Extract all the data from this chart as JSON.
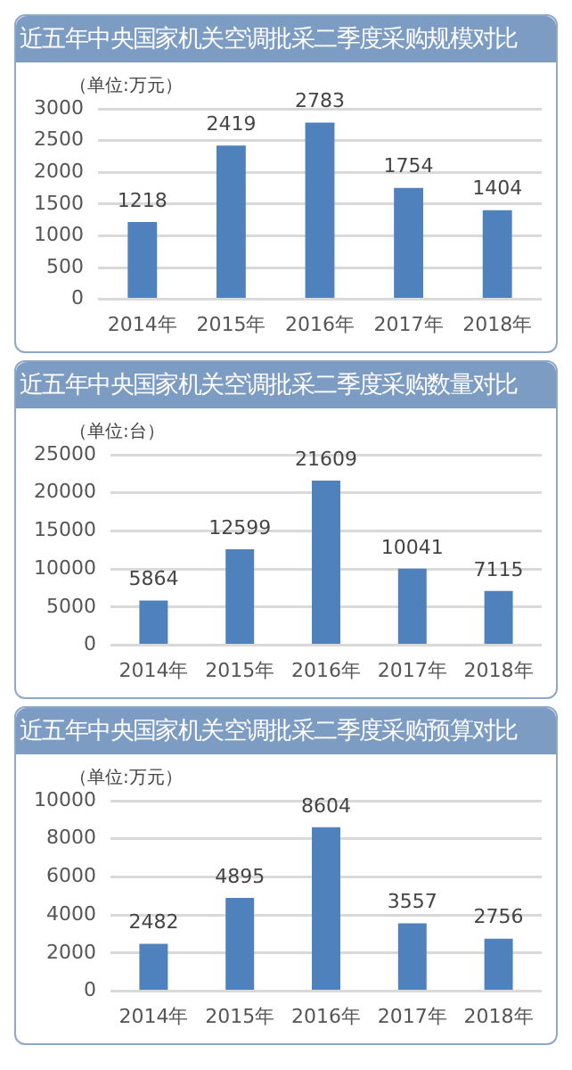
{
  "chart_data": [
    {
      "type": "bar",
      "title": "近五年中央国家机关空调批采二季度采购规模对比",
      "ylabel": "（单位:万元）",
      "categories": [
        "2014年",
        "2015年",
        "2016年",
        "2017年",
        "2018年"
      ],
      "values": [
        1218,
        2419,
        2783,
        1754,
        1404
      ],
      "color": "#4f81bd",
      "ylim": [
        0,
        3000
      ],
      "yticks": [
        0,
        500,
        1000,
        1500,
        2000,
        2500,
        3000
      ],
      "grid": "y",
      "data_labels": true,
      "legend": false
    },
    {
      "type": "bar",
      "title": "近五年中央国家机关空调批采二季度采购数量对比",
      "ylabel": "（单位:台）",
      "categories": [
        "2014年",
        "2015年",
        "2016年",
        "2017年",
        "2018年"
      ],
      "values": [
        5864,
        12599,
        21609,
        10041,
        7115
      ],
      "color": "#4f81bd",
      "ylim": [
        0,
        25000
      ],
      "yticks": [
        0,
        5000,
        10000,
        15000,
        20000,
        25000
      ],
      "grid": "y",
      "data_labels": true,
      "legend": false
    },
    {
      "type": "bar",
      "title": "近五年中央国家机关空调批采二季度采购预算对比",
      "ylabel": "（单位:万元）",
      "categories": [
        "2014年",
        "2015年",
        "2016年",
        "2017年",
        "2018年"
      ],
      "values": [
        2482,
        4895,
        8604,
        3557,
        2756
      ],
      "color": "#4f81bd",
      "ylim": [
        0,
        10000
      ],
      "yticks": [
        0,
        2000,
        4000,
        6000,
        8000,
        10000
      ],
      "grid": "y",
      "data_labels": true,
      "legend": false
    }
  ]
}
